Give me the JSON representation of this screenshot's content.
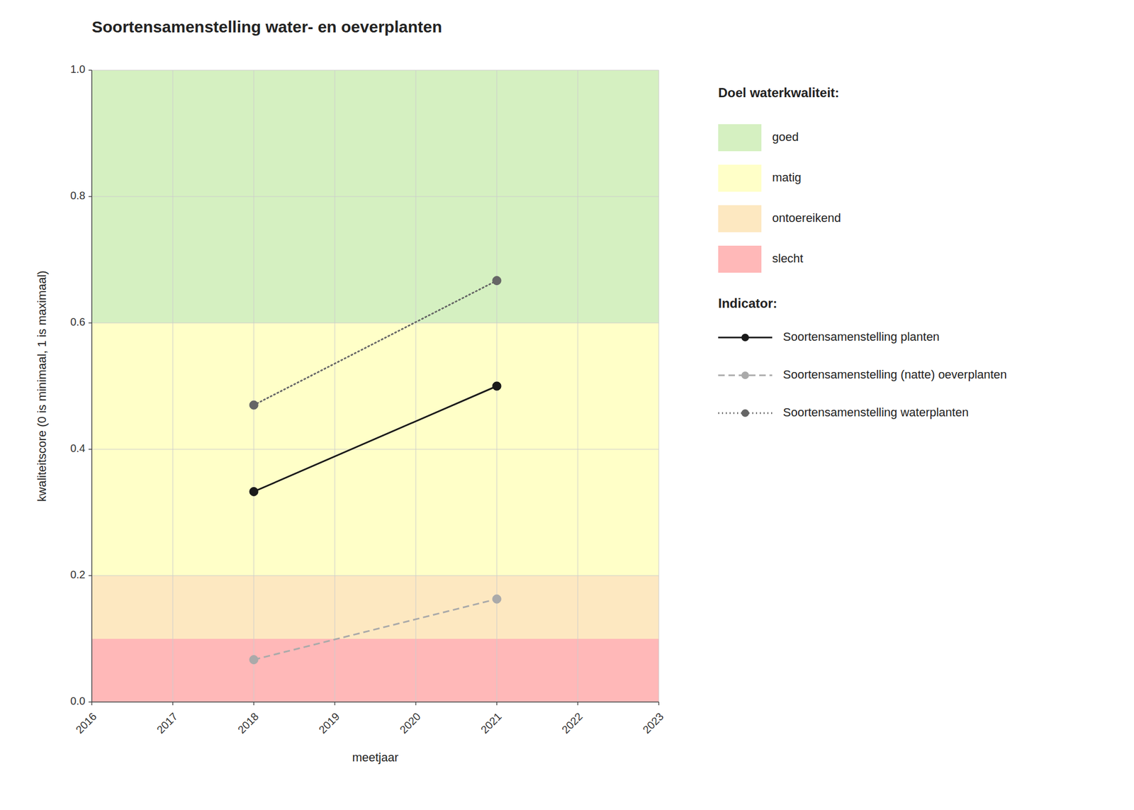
{
  "chart_data": {
    "type": "line",
    "title": "Soortensamenstelling water- en oeverplanten",
    "x_label": "meetjaar",
    "y_label": "kwaliteitscore (0 is minimaal, 1 is maximaal)",
    "xlim": [
      2016,
      2023
    ],
    "ylim": [
      0.0,
      1.0
    ],
    "xticks": [
      2016,
      2017,
      2018,
      2019,
      2020,
      2021,
      2022,
      2023
    ],
    "yticks": [
      {
        "value": 0.0,
        "label": "0.0"
      },
      0.2,
      0.4,
      0.6,
      0.8,
      {
        "value": 1.0,
        "label": "1.0"
      }
    ],
    "grid": true,
    "legend": "right",
    "legend_quality_title": "Doel waterkwaliteit:",
    "legend_indicator_title": "Indicator:",
    "bands": [
      {
        "name": "goed",
        "color": "#d5f0c1",
        "from": 0.6,
        "to": 1.0
      },
      {
        "name": "matig",
        "color": "#ffffc8",
        "from": 0.2,
        "to": 0.6
      },
      {
        "name": "ontoereikend",
        "color": "#fde8c1",
        "from": 0.1,
        "to": 0.2
      },
      {
        "name": "slecht",
        "color": "#ffb8b8",
        "from": 0.0,
        "to": 0.1
      }
    ],
    "x": [
      2018,
      2021
    ],
    "series": [
      {
        "name": "Soortensamenstelling planten",
        "color": "#1a1a1a",
        "line_style": "solid",
        "marker": "circle",
        "values": [
          0.333,
          0.5
        ]
      },
      {
        "name": "Soortensamenstelling (natte) oeverplanten",
        "color": "#aaaaaa",
        "line_style": "dashed",
        "marker": "circle",
        "values": [
          0.067,
          0.163
        ]
      },
      {
        "name": "Soortensamenstelling waterplanten",
        "color": "#666666",
        "line_style": "dotted",
        "marker": "circle",
        "values": [
          0.47,
          0.667
        ]
      }
    ]
  }
}
